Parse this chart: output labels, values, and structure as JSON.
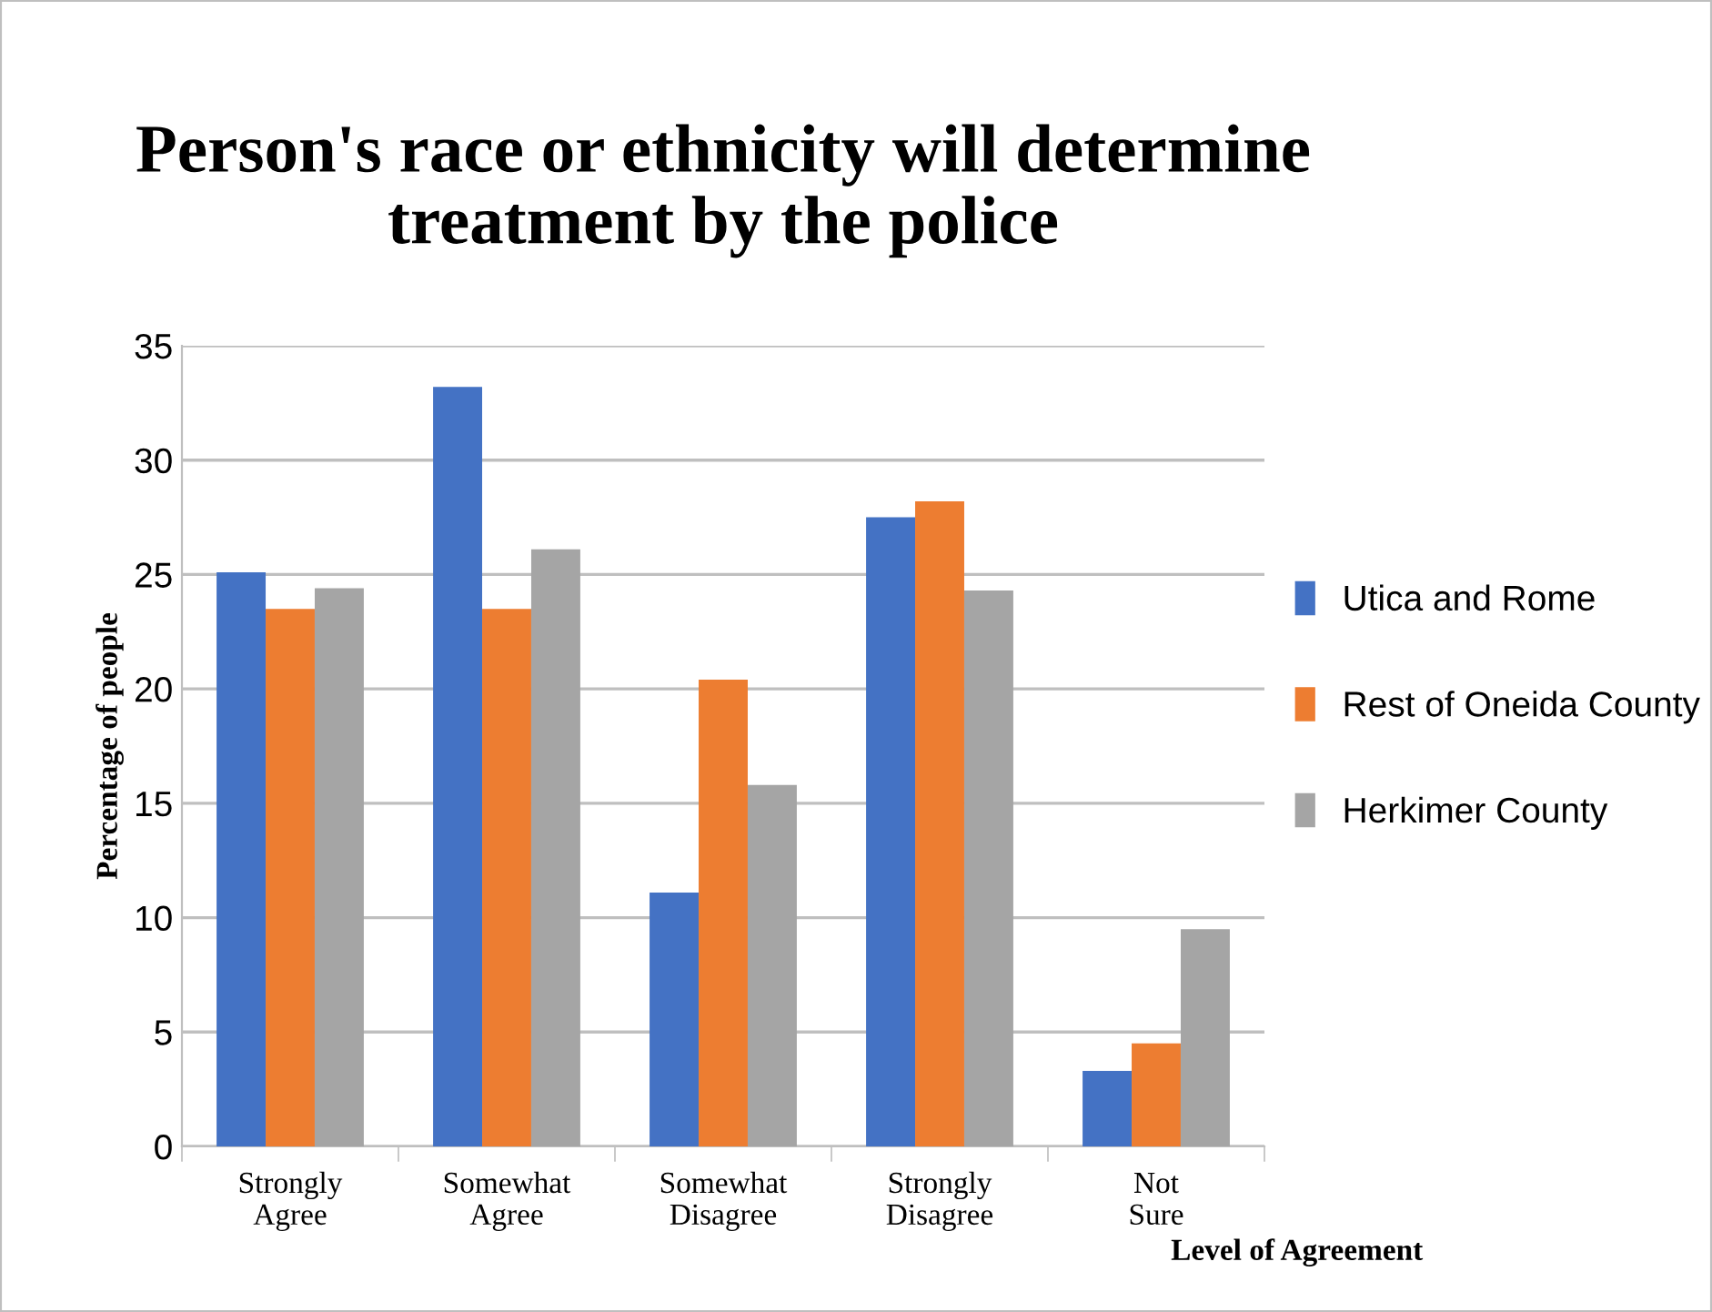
{
  "chart_data": {
    "type": "bar",
    "title": "Person's race or ethnicity will determine treatment by the police",
    "xlabel": "Level of Agreement",
    "ylabel": "Percentage of people",
    "categories": [
      "Strongly Agree",
      "Somewhat Agree",
      "Somewhat Disagree",
      "Strongly Disagree",
      "Not Sure"
    ],
    "series": [
      {
        "name": "Utica and Rome",
        "color": "#4472c4",
        "values": [
          25.1,
          33.2,
          11.1,
          27.5,
          3.3
        ]
      },
      {
        "name": "Rest of Oneida County",
        "color": "#ed7d31",
        "values": [
          23.5,
          23.5,
          20.4,
          28.2,
          4.5
        ]
      },
      {
        "name": "Herkimer County",
        "color": "#a5a5a5",
        "values": [
          24.4,
          26.1,
          15.8,
          24.3,
          9.5
        ]
      }
    ],
    "ylim": [
      0,
      35
    ],
    "yticks": [
      0,
      5,
      10,
      15,
      20,
      25,
      30,
      35
    ],
    "grid": "y",
    "legend": "right"
  }
}
